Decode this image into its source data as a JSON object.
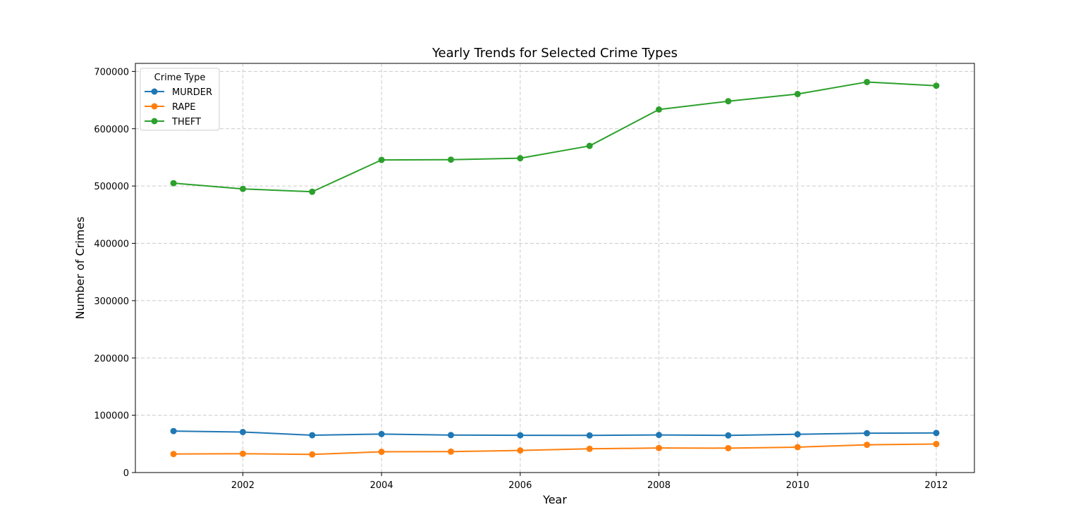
{
  "chart_data": {
    "type": "line",
    "title": "Yearly Trends for Selected Crime Types",
    "xlabel": "Year",
    "ylabel": "Number of Crimes",
    "x": [
      2001,
      2002,
      2003,
      2004,
      2005,
      2006,
      2007,
      2008,
      2009,
      2010,
      2011,
      2012
    ],
    "xlim": [
      2000.45,
      2012.55
    ],
    "ylim": [
      0,
      714000
    ],
    "xticks": [
      2002,
      2004,
      2006,
      2008,
      2010,
      2012
    ],
    "xtick_labels": [
      "2002",
      "2004",
      "2006",
      "2008",
      "2010",
      "2012"
    ],
    "yticks": [
      0,
      100000,
      200000,
      300000,
      400000,
      500000,
      600000,
      700000
    ],
    "ytick_labels": [
      "0",
      "100000",
      "200000",
      "300000",
      "400000",
      "500000",
      "600000",
      "700000"
    ],
    "grid": true,
    "legend": {
      "title": "Crime Type",
      "placement": "top-left"
    },
    "series": [
      {
        "name": "MURDER",
        "color": "#1f77b4",
        "values": [
          72400,
          70700,
          65200,
          67200,
          65400,
          65000,
          64800,
          65600,
          64800,
          66800,
          68600,
          69100
        ]
      },
      {
        "name": "RAPE",
        "color": "#ff7f0e",
        "values": [
          32300,
          32800,
          31600,
          36200,
          36500,
          38600,
          41400,
          42800,
          42600,
          44300,
          48400,
          49800
        ]
      },
      {
        "name": "THEFT",
        "color": "#2ca02c",
        "values": [
          505000,
          495000,
          490000,
          545500,
          546000,
          548500,
          570000,
          633500,
          648000,
          660500,
          681500,
          675000
        ]
      }
    ]
  }
}
